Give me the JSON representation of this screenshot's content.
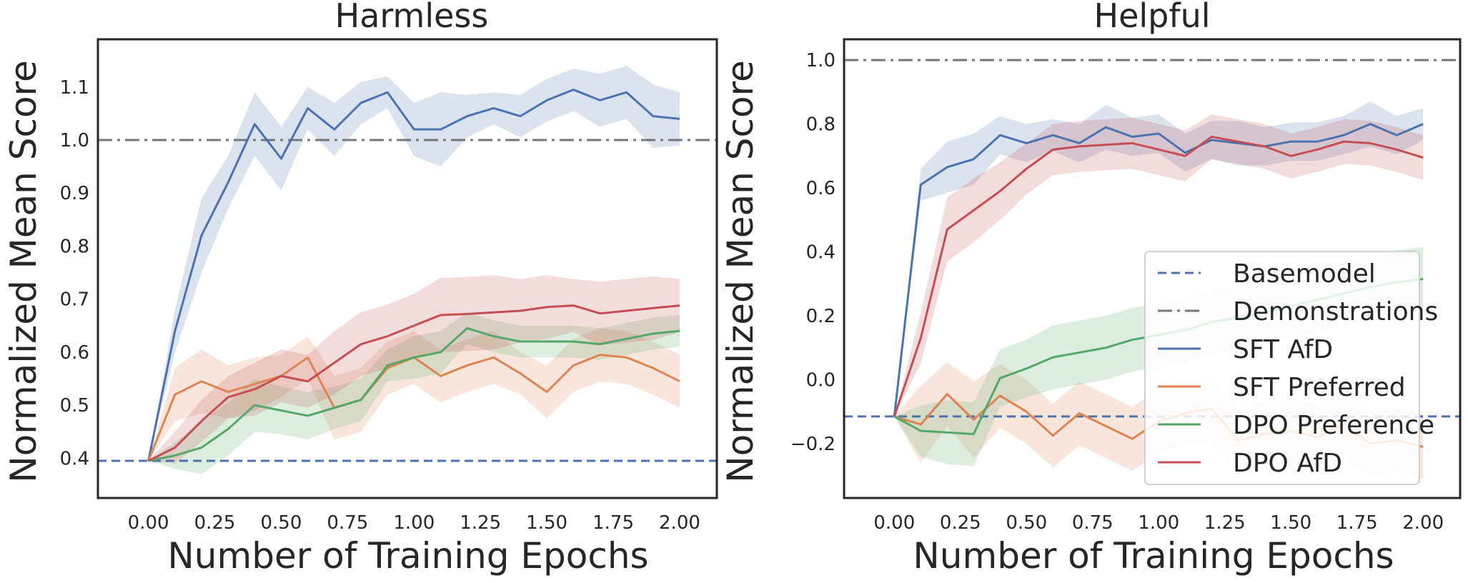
{
  "chart_data": [
    {
      "type": "line",
      "title": "Harmless",
      "xlabel": "Number of Training Epochs",
      "ylabel": "Normalized Mean Score",
      "xlim": [
        -0.19,
        2.14
      ],
      "ylim": [
        0.325,
        1.19
      ],
      "xticks": [
        0.0,
        0.25,
        0.5,
        0.75,
        1.0,
        1.25,
        1.5,
        1.75,
        2.0
      ],
      "xtick_labels": [
        "0.00",
        "0.25",
        "0.50",
        "0.75",
        "1.00",
        "1.25",
        "1.50",
        "1.75",
        "2.00"
      ],
      "yticks": [
        0.4,
        0.5,
        0.6,
        0.7,
        0.8,
        0.9,
        1.0,
        1.1
      ],
      "ytick_labels": [
        "0.4",
        "0.5",
        "0.6",
        "0.7",
        "0.8",
        "0.9",
        "1.0",
        "1.1"
      ],
      "hlines": [
        {
          "name": "Basemodel",
          "y": 0.395
        },
        {
          "name": "Demonstrations",
          "y": 1.0
        }
      ],
      "x": [
        0.0,
        0.1,
        0.2,
        0.3,
        0.4,
        0.5,
        0.6,
        0.7,
        0.8,
        0.9,
        1.0,
        1.1,
        1.2,
        1.3,
        1.4,
        1.5,
        1.6,
        1.7,
        1.8,
        1.9,
        2.0
      ],
      "series": [
        {
          "name": "SFT AfD",
          "values": [
            0.395,
            0.64,
            0.82,
            0.92,
            1.03,
            0.965,
            1.06,
            1.02,
            1.07,
            1.09,
            1.02,
            1.02,
            1.045,
            1.06,
            1.045,
            1.075,
            1.095,
            1.075,
            1.09,
            1.045,
            1.04
          ],
          "ci": [
            0.0,
            0.04,
            0.07,
            0.05,
            0.06,
            0.06,
            0.04,
            0.05,
            0.04,
            0.03,
            0.05,
            0.07,
            0.04,
            0.03,
            0.04,
            0.04,
            0.04,
            0.05,
            0.05,
            0.06,
            0.05
          ]
        },
        {
          "name": "SFT Preferred",
          "values": [
            0.395,
            0.52,
            0.545,
            0.525,
            0.54,
            0.555,
            0.59,
            0.495,
            0.51,
            0.57,
            0.59,
            0.555,
            0.575,
            0.59,
            0.56,
            0.525,
            0.575,
            0.595,
            0.59,
            0.57,
            0.545
          ],
          "ci": [
            0.0,
            0.05,
            0.06,
            0.05,
            0.05,
            0.04,
            0.04,
            0.06,
            0.06,
            0.05,
            0.05,
            0.05,
            0.05,
            0.05,
            0.04,
            0.05,
            0.05,
            0.05,
            0.05,
            0.05,
            0.05
          ]
        },
        {
          "name": "DPO Preference",
          "values": [
            0.395,
            0.405,
            0.42,
            0.455,
            0.5,
            0.49,
            0.48,
            0.495,
            0.51,
            0.575,
            0.59,
            0.6,
            0.645,
            0.63,
            0.62,
            0.62,
            0.62,
            0.615,
            0.625,
            0.635,
            0.64
          ],
          "ci": [
            0.0,
            0.025,
            0.05,
            0.05,
            0.05,
            0.045,
            0.045,
            0.04,
            0.04,
            0.03,
            0.04,
            0.04,
            0.03,
            0.03,
            0.03,
            0.03,
            0.03,
            0.03,
            0.03,
            0.03,
            0.03
          ]
        },
        {
          "name": "DPO AfD",
          "values": [
            0.395,
            0.42,
            0.47,
            0.515,
            0.53,
            0.555,
            0.545,
            0.58,
            0.615,
            0.63,
            0.65,
            0.67,
            0.672,
            0.675,
            0.678,
            0.685,
            0.688,
            0.673,
            0.678,
            0.683,
            0.688
          ],
          "ci": [
            0.0,
            0.03,
            0.04,
            0.04,
            0.05,
            0.05,
            0.05,
            0.06,
            0.06,
            0.06,
            0.06,
            0.07,
            0.07,
            0.07,
            0.06,
            0.06,
            0.05,
            0.06,
            0.06,
            0.06,
            0.05
          ]
        }
      ]
    },
    {
      "type": "line",
      "title": "Helpful",
      "xlabel": "Number of Training Epochs",
      "ylabel": "Normalized Mean Score",
      "xlim": [
        -0.19,
        2.14
      ],
      "ylim": [
        -0.37,
        1.065
      ],
      "xticks": [
        0.0,
        0.25,
        0.5,
        0.75,
        1.0,
        1.25,
        1.5,
        1.75,
        2.0
      ],
      "xtick_labels": [
        "0.00",
        "0.25",
        "0.50",
        "0.75",
        "1.00",
        "1.25",
        "1.50",
        "1.75",
        "2.00"
      ],
      "yticks": [
        -0.2,
        0.0,
        0.2,
        0.4,
        0.6,
        0.8,
        1.0
      ],
      "ytick_labels": [
        "−0.2",
        "0.0",
        "0.2",
        "0.4",
        "0.6",
        "0.8",
        "1.0"
      ],
      "hlines": [
        {
          "name": "Basemodel",
          "y": -0.115
        },
        {
          "name": "Demonstrations",
          "y": 1.0
        }
      ],
      "x": [
        0.0,
        0.1,
        0.2,
        0.3,
        0.4,
        0.5,
        0.6,
        0.7,
        0.8,
        0.9,
        1.0,
        1.1,
        1.2,
        1.3,
        1.4,
        1.5,
        1.6,
        1.7,
        1.8,
        1.9,
        2.0
      ],
      "series": [
        {
          "name": "SFT AfD",
          "values": [
            -0.115,
            0.61,
            0.665,
            0.69,
            0.765,
            0.74,
            0.765,
            0.74,
            0.79,
            0.76,
            0.77,
            0.71,
            0.75,
            0.74,
            0.73,
            0.745,
            0.745,
            0.765,
            0.8,
            0.765,
            0.8
          ],
          "ci": [
            0.0,
            0.05,
            0.08,
            0.08,
            0.06,
            0.06,
            0.05,
            0.06,
            0.07,
            0.06,
            0.06,
            0.06,
            0.06,
            0.07,
            0.06,
            0.06,
            0.06,
            0.06,
            0.07,
            0.06,
            0.05
          ]
        },
        {
          "name": "SFT Preferred",
          "values": [
            -0.115,
            -0.14,
            -0.045,
            -0.125,
            -0.05,
            -0.1,
            -0.175,
            -0.105,
            -0.145,
            -0.185,
            -0.13,
            -0.105,
            -0.09,
            -0.19,
            -0.17,
            -0.16,
            -0.18,
            -0.14,
            -0.2,
            -0.19,
            -0.21
          ],
          "ci": [
            0.0,
            0.12,
            0.1,
            0.12,
            0.1,
            0.1,
            0.1,
            0.1,
            0.1,
            0.1,
            0.1,
            0.1,
            0.1,
            0.1,
            0.1,
            0.1,
            0.1,
            0.1,
            0.1,
            0.1,
            0.1
          ]
        },
        {
          "name": "DPO Preference",
          "values": [
            -0.115,
            -0.16,
            -0.165,
            -0.17,
            0.005,
            0.035,
            0.07,
            0.085,
            0.1,
            0.125,
            0.14,
            0.155,
            0.18,
            0.195,
            0.21,
            0.23,
            0.25,
            0.27,
            0.29,
            0.305,
            0.315
          ],
          "ci": [
            0.0,
            0.08,
            0.1,
            0.1,
            0.09,
            0.09,
            0.1,
            0.1,
            0.1,
            0.1,
            0.1,
            0.1,
            0.1,
            0.1,
            0.1,
            0.1,
            0.1,
            0.1,
            0.1,
            0.1,
            0.1
          ]
        },
        {
          "name": "DPO AfD",
          "values": [
            -0.115,
            0.13,
            0.47,
            0.53,
            0.59,
            0.66,
            0.72,
            0.73,
            0.735,
            0.74,
            0.72,
            0.7,
            0.76,
            0.745,
            0.73,
            0.7,
            0.72,
            0.745,
            0.74,
            0.72,
            0.695
          ],
          "ci": [
            0.0,
            0.08,
            0.1,
            0.1,
            0.09,
            0.08,
            0.08,
            0.08,
            0.08,
            0.08,
            0.08,
            0.08,
            0.07,
            0.07,
            0.07,
            0.07,
            0.07,
            0.07,
            0.07,
            0.07,
            0.07
          ]
        }
      ]
    }
  ],
  "legend": {
    "entries": [
      "Basemodel",
      "Demonstrations",
      "SFT AfD",
      "SFT Preferred",
      "DPO Preference",
      "DPO AfD"
    ]
  },
  "colors": {
    "SFT AfD": "#4c72b0",
    "SFT Preferred": "#dd8452",
    "DPO Preference": "#55a868",
    "DPO AfD": "#c44e52",
    "Basemodel": "#4c72b0",
    "Demonstrations": "#777777",
    "axes": "#262626",
    "text": "#262626"
  }
}
